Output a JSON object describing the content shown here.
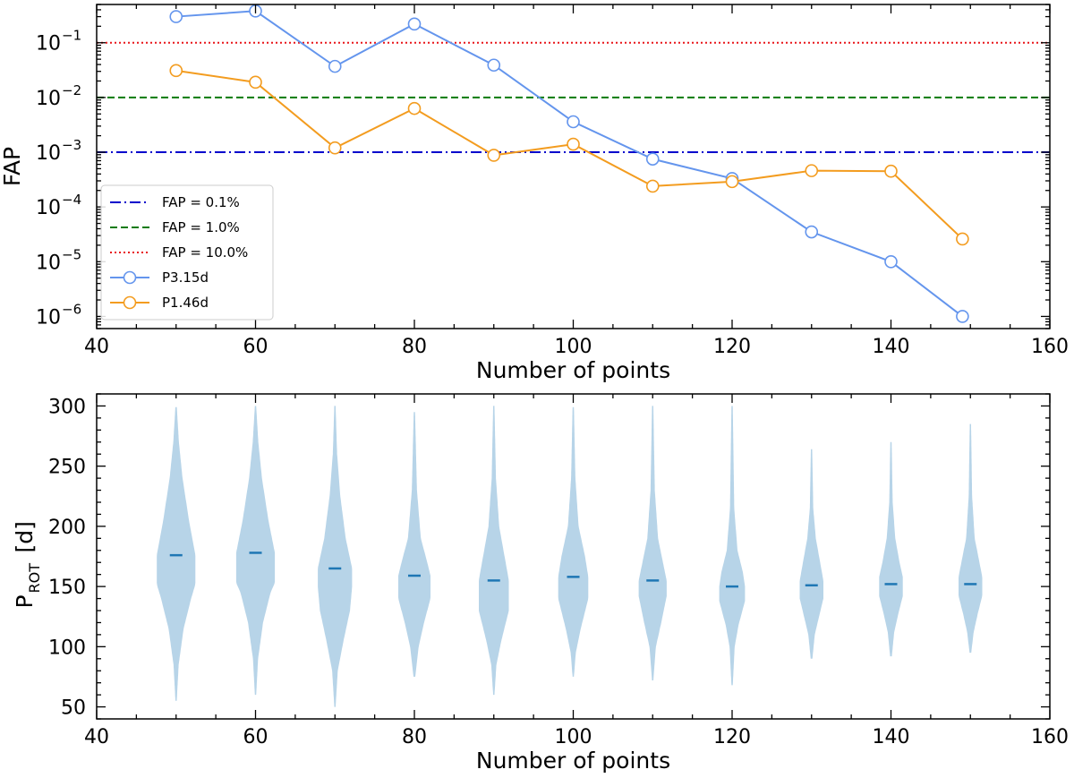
{
  "chart_data": [
    {
      "type": "line",
      "yscale": "log",
      "xlabel": "Number of points",
      "ylabel": "FAP",
      "xlim": [
        40,
        160
      ],
      "ylim": [
        6e-07,
        0.5
      ],
      "xticks": [
        40,
        60,
        80,
        100,
        120,
        140,
        160
      ],
      "yticks": [
        {
          "value": 1e-06,
          "base": "10",
          "exp": "−6"
        },
        {
          "value": 1e-05,
          "base": "10",
          "exp": "−5"
        },
        {
          "value": 0.0001,
          "base": "10",
          "exp": "−4"
        },
        {
          "value": 0.001,
          "base": "10",
          "exp": "−3"
        },
        {
          "value": 0.01,
          "base": "10",
          "exp": "−2"
        },
        {
          "value": 0.1,
          "base": "10",
          "exp": "−1"
        }
      ],
      "legend_position": "lower-left",
      "hlines": [
        {
          "name": "FAP =  0.1%",
          "y": 0.001,
          "color": "#0000cc",
          "style": "dashdot"
        },
        {
          "name": "FAP =  1.0%",
          "y": 0.01,
          "color": "#0a7a0a",
          "style": "dashed"
        },
        {
          "name": "FAP = 10.0%",
          "y": 0.1,
          "color": "#e8161a",
          "style": "dotted"
        }
      ],
      "series": [
        {
          "name": "P3.15d",
          "color": "#6495ed",
          "x": [
            50,
            60,
            70,
            80,
            90,
            100,
            110,
            120,
            130,
            140,
            149
          ],
          "values": [
            0.3,
            0.38,
            0.037,
            0.22,
            0.039,
            0.0036,
            0.00075,
            0.00033,
            3.5e-05,
            1e-05,
            1e-06
          ]
        },
        {
          "name": "P1.46d",
          "color": "#f39c1f",
          "x": [
            50,
            60,
            70,
            80,
            90,
            100,
            110,
            120,
            130,
            140,
            149
          ],
          "values": [
            0.031,
            0.019,
            0.0012,
            0.0063,
            0.00088,
            0.0014,
            0.00024,
            0.00029,
            0.00046,
            0.00045,
            2.6e-05
          ]
        }
      ]
    },
    {
      "type": "violin",
      "xlabel": "Number of points",
      "ylabel_main": "P",
      "ylabel_sub": "ROT",
      "ylabel_unit": "[d]",
      "xlim": [
        40,
        160
      ],
      "ylim": [
        40,
        310
      ],
      "xticks": [
        40,
        60,
        80,
        100,
        120,
        140,
        160
      ],
      "yticks": [
        50,
        100,
        150,
        200,
        250,
        300
      ],
      "fill_color": "#b7d4e8",
      "median_color": "#1f77b4",
      "violins": [
        {
          "x": 50,
          "median": 176,
          "min": 55,
          "max": 300,
          "profile": [
            [
              55,
              0.3
            ],
            [
              85,
              1.2
            ],
            [
              115,
              3.5
            ],
            [
              140,
              7
            ],
            [
              152,
              9
            ],
            [
              176,
              9
            ],
            [
              205,
              6
            ],
            [
              240,
              3
            ],
            [
              270,
              1.3
            ],
            [
              300,
              0.3
            ]
          ]
        },
        {
          "x": 60,
          "median": 178,
          "min": 60,
          "max": 300,
          "profile": [
            [
              60,
              0.3
            ],
            [
              90,
              1.2
            ],
            [
              120,
              3.5
            ],
            [
              145,
              7
            ],
            [
              153,
              9
            ],
            [
              178,
              9
            ],
            [
              205,
              6
            ],
            [
              240,
              3
            ],
            [
              270,
              1.3
            ],
            [
              300,
              0.3
            ]
          ]
        },
        {
          "x": 70,
          "median": 165,
          "min": 50,
          "max": 300,
          "profile": [
            [
              50,
              0.3
            ],
            [
              80,
              1.3
            ],
            [
              105,
              4
            ],
            [
              130,
              7
            ],
            [
              150,
              8
            ],
            [
              165,
              8
            ],
            [
              190,
              5
            ],
            [
              225,
              2.5
            ],
            [
              260,
              1
            ],
            [
              300,
              0.3
            ]
          ]
        },
        {
          "x": 80,
          "median": 159,
          "min": 75,
          "max": 295,
          "profile": [
            [
              75,
              0.4
            ],
            [
              100,
              2
            ],
            [
              120,
              4.5
            ],
            [
              140,
              7.5
            ],
            [
              159,
              7.5
            ],
            [
              170,
              6
            ],
            [
              190,
              3
            ],
            [
              230,
              1.2
            ],
            [
              295,
              0.3
            ]
          ]
        },
        {
          "x": 90,
          "median": 155,
          "min": 60,
          "max": 300,
          "profile": [
            [
              60,
              0.3
            ],
            [
              85,
              1.2
            ],
            [
              105,
              3.5
            ],
            [
              130,
              7
            ],
            [
              155,
              7
            ],
            [
              175,
              5
            ],
            [
              200,
              2.5
            ],
            [
              240,
              1
            ],
            [
              300,
              0.3
            ]
          ]
        },
        {
          "x": 100,
          "median": 158,
          "min": 75,
          "max": 300,
          "profile": [
            [
              75,
              0.3
            ],
            [
              95,
              1.2
            ],
            [
              115,
              3.5
            ],
            [
              140,
              7
            ],
            [
              158,
              7
            ],
            [
              175,
              5.5
            ],
            [
              200,
              2.5
            ],
            [
              240,
              1
            ],
            [
              300,
              0.3
            ]
          ]
        },
        {
          "x": 110,
          "median": 155,
          "min": 72,
          "max": 300,
          "profile": [
            [
              72,
              0.3
            ],
            [
              100,
              1.5
            ],
            [
              120,
              4
            ],
            [
              142,
              6.5
            ],
            [
              155,
              6.5
            ],
            [
              168,
              5
            ],
            [
              190,
              2.5
            ],
            [
              230,
              1
            ],
            [
              300,
              0.3
            ]
          ]
        },
        {
          "x": 120,
          "median": 150,
          "min": 68,
          "max": 300,
          "profile": [
            [
              68,
              0.3
            ],
            [
              100,
              1.2
            ],
            [
              118,
              3
            ],
            [
              138,
              6
            ],
            [
              150,
              6
            ],
            [
              162,
              5
            ],
            [
              180,
              2.5
            ],
            [
              215,
              1
            ],
            [
              300,
              0.3
            ]
          ]
        },
        {
          "x": 130,
          "median": 151,
          "min": 90,
          "max": 265,
          "profile": [
            [
              90,
              0.4
            ],
            [
              110,
              1.5
            ],
            [
              125,
              3.5
            ],
            [
              140,
              5.5
            ],
            [
              155,
              5.5
            ],
            [
              170,
              4
            ],
            [
              190,
              2
            ],
            [
              215,
              0.8
            ],
            [
              265,
              0.3
            ]
          ]
        },
        {
          "x": 140,
          "median": 152,
          "min": 92,
          "max": 270,
          "profile": [
            [
              92,
              0.4
            ],
            [
              112,
              1.5
            ],
            [
              128,
              3.5
            ],
            [
              142,
              5.5
            ],
            [
              158,
              5.5
            ],
            [
              170,
              4
            ],
            [
              190,
              2
            ],
            [
              220,
              0.8
            ],
            [
              270,
              0.3
            ]
          ]
        },
        {
          "x": 150,
          "median": 152,
          "min": 95,
          "max": 285,
          "profile": [
            [
              95,
              0.4
            ],
            [
              112,
              1.5
            ],
            [
              128,
              3.5
            ],
            [
              142,
              5.5
            ],
            [
              158,
              5.5
            ],
            [
              172,
              4
            ],
            [
              190,
              2
            ],
            [
              225,
              0.8
            ],
            [
              285,
              0.3
            ]
          ]
        }
      ]
    }
  ]
}
